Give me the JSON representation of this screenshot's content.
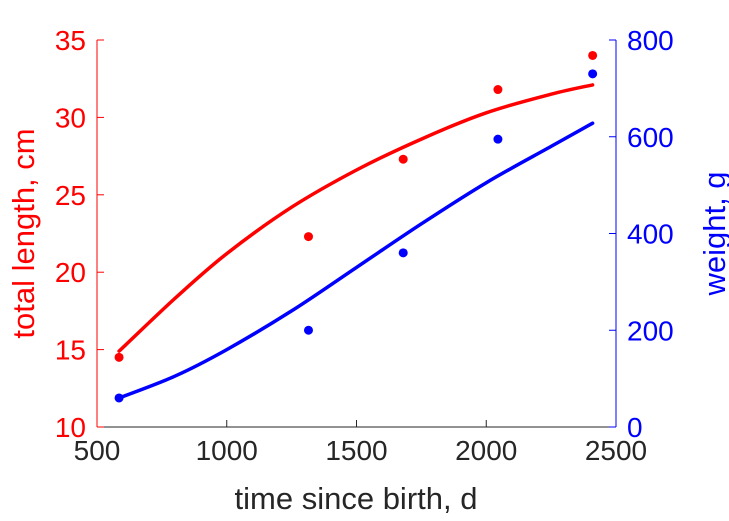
{
  "chart_data": {
    "type": "scatter",
    "xlabel": "time since birth, d",
    "xlim": [
      500,
      2500
    ],
    "xticks": [
      500,
      1000,
      1500,
      2000,
      2500
    ],
    "left_axis": {
      "label": "total length, cm",
      "ylim": [
        10,
        35
      ],
      "ticks": [
        10,
        15,
        20,
        25,
        30,
        35
      ],
      "color": "#ff0000"
    },
    "right_axis": {
      "label": "weight, g",
      "ylim": [
        0,
        800
      ],
      "ticks": [
        0,
        200,
        400,
        600,
        800
      ],
      "color": "#0000ff"
    },
    "series": [
      {
        "axis": "left",
        "color": "#ff0000",
        "points": [
          [
            585,
            14.5
          ],
          [
            1315,
            22.3
          ],
          [
            1680,
            27.3
          ],
          [
            2045,
            31.8
          ],
          [
            2410,
            34.0
          ]
        ],
        "fit_curve": [
          [
            585,
            14.9
          ],
          [
            800,
            18.3
          ],
          [
            1000,
            21.2
          ],
          [
            1250,
            24.2
          ],
          [
            1500,
            26.6
          ],
          [
            1750,
            28.6
          ],
          [
            2000,
            30.3
          ],
          [
            2250,
            31.5
          ],
          [
            2410,
            32.1
          ]
        ]
      },
      {
        "axis": "right",
        "color": "#0000ff",
        "points": [
          [
            585,
            60
          ],
          [
            1315,
            200
          ],
          [
            1680,
            360
          ],
          [
            2045,
            595
          ],
          [
            2410,
            730
          ]
        ],
        "fit_curve": [
          [
            585,
            60
          ],
          [
            800,
            105
          ],
          [
            1000,
            160
          ],
          [
            1250,
            240
          ],
          [
            1500,
            330
          ],
          [
            1750,
            420
          ],
          [
            2000,
            505
          ],
          [
            2250,
            580
          ],
          [
            2410,
            628
          ]
        ]
      }
    ]
  }
}
